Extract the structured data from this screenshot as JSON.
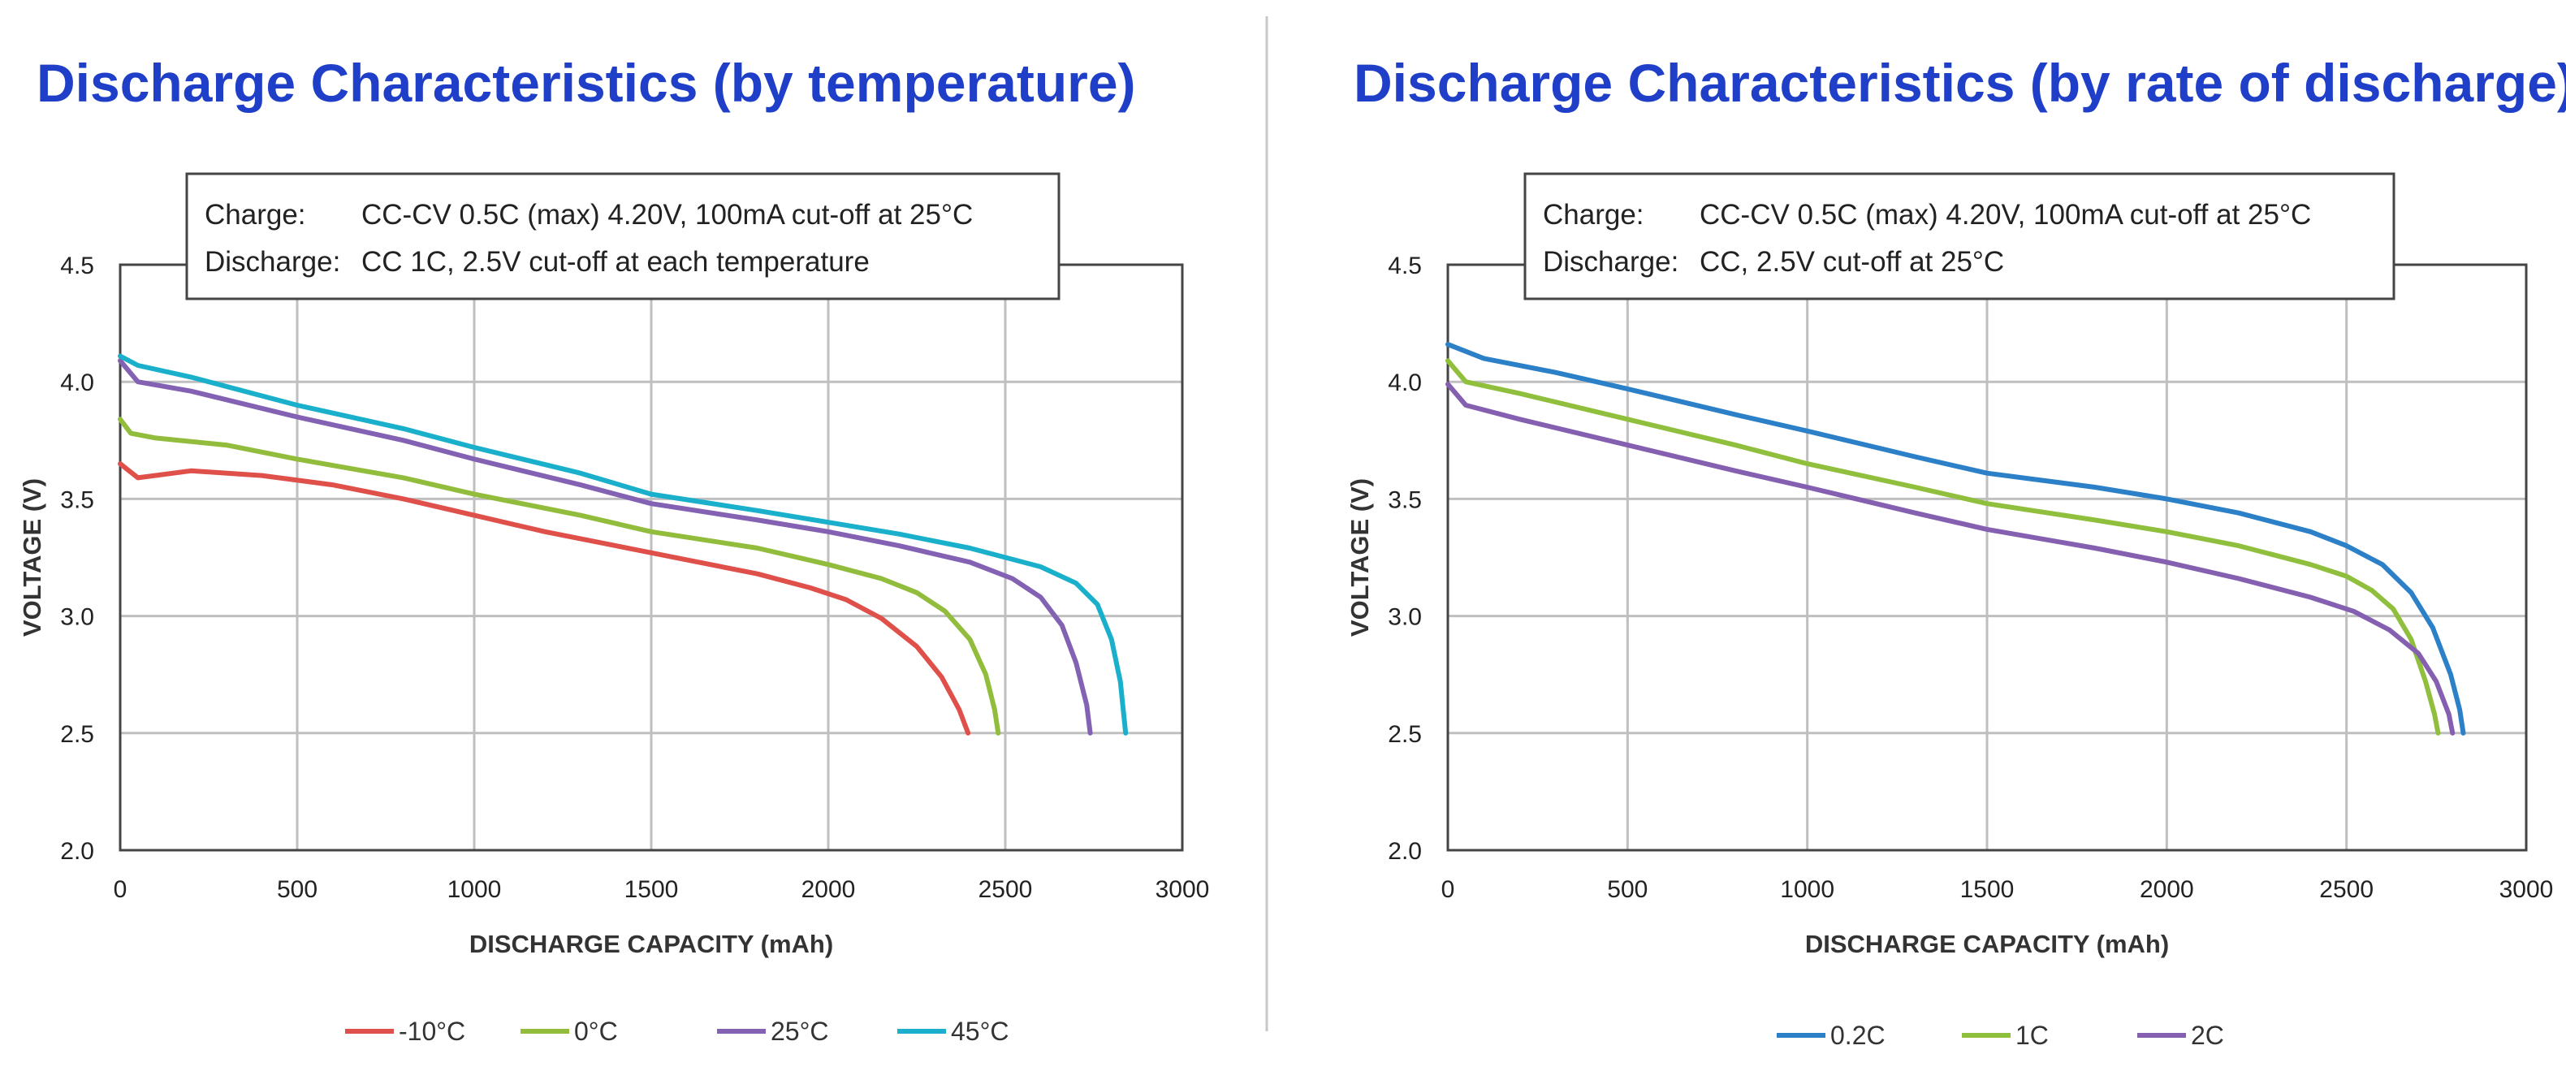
{
  "colors": {
    "title": "#1f3fc8",
    "grid": "#bfbfbf",
    "frame": "#444444",
    "divider": "#c8c8c8"
  },
  "chart_data": [
    {
      "type": "line",
      "title": "Discharge Characteristics (by temperature)",
      "xlabel": "DISCHARGE CAPACITY (mAh)",
      "ylabel": "VOLTAGE (V)",
      "xlim": [
        0,
        3000
      ],
      "ylim": [
        2.0,
        4.5
      ],
      "x_ticks": [
        0,
        500,
        1000,
        1500,
        2000,
        2500,
        3000
      ],
      "y_ticks": [
        2.0,
        2.5,
        3.0,
        3.5,
        4.0,
        4.5
      ],
      "x_tick_labels": [
        "0",
        "500",
        "1000",
        "1500",
        "2000",
        "2500",
        "3000"
      ],
      "y_tick_labels": [
        "2.0",
        "2.5",
        "3.0",
        "3.5",
        "4.0",
        "4.5"
      ],
      "grid": true,
      "legend_position": "bottom",
      "note": {
        "charge_label": "Charge:",
        "charge_text": "CC-CV 0.5C (max) 4.20V, 100mA cut-off at 25°C",
        "discharge_label": "Discharge:",
        "discharge_text": "CC 1C, 2.5V cut-off at each temperature"
      },
      "series": [
        {
          "name": "-10°C",
          "color": "#e0504a",
          "points": [
            [
              0,
              3.65
            ],
            [
              50,
              3.59
            ],
            [
              200,
              3.62
            ],
            [
              400,
              3.6
            ],
            [
              600,
              3.56
            ],
            [
              800,
              3.5
            ],
            [
              1000,
              3.43
            ],
            [
              1200,
              3.36
            ],
            [
              1400,
              3.3
            ],
            [
              1600,
              3.24
            ],
            [
              1800,
              3.18
            ],
            [
              1950,
              3.12
            ],
            [
              2050,
              3.07
            ],
            [
              2150,
              2.99
            ],
            [
              2250,
              2.87
            ],
            [
              2320,
              2.74
            ],
            [
              2370,
              2.6
            ],
            [
              2395,
              2.5
            ]
          ]
        },
        {
          "name": "0°C",
          "color": "#92bc3c",
          "points": [
            [
              0,
              3.84
            ],
            [
              30,
              3.78
            ],
            [
              100,
              3.76
            ],
            [
              300,
              3.73
            ],
            [
              500,
              3.67
            ],
            [
              800,
              3.59
            ],
            [
              1000,
              3.52
            ],
            [
              1300,
              3.43
            ],
            [
              1500,
              3.36
            ],
            [
              1800,
              3.29
            ],
            [
              2000,
              3.22
            ],
            [
              2150,
              3.16
            ],
            [
              2250,
              3.1
            ],
            [
              2330,
              3.02
            ],
            [
              2400,
              2.9
            ],
            [
              2445,
              2.75
            ],
            [
              2470,
              2.6
            ],
            [
              2480,
              2.5
            ]
          ]
        },
        {
          "name": "25°C",
          "color": "#8361b3",
          "points": [
            [
              0,
              4.09
            ],
            [
              50,
              4.0
            ],
            [
              200,
              3.96
            ],
            [
              500,
              3.85
            ],
            [
              800,
              3.75
            ],
            [
              1000,
              3.67
            ],
            [
              1300,
              3.56
            ],
            [
              1500,
              3.48
            ],
            [
              1800,
              3.41
            ],
            [
              2000,
              3.36
            ],
            [
              2200,
              3.3
            ],
            [
              2400,
              3.23
            ],
            [
              2520,
              3.16
            ],
            [
              2600,
              3.08
            ],
            [
              2660,
              2.96
            ],
            [
              2700,
              2.8
            ],
            [
              2730,
              2.62
            ],
            [
              2740,
              2.5
            ]
          ]
        },
        {
          "name": "45°C",
          "color": "#1ab0cc",
          "points": [
            [
              0,
              4.11
            ],
            [
              50,
              4.07
            ],
            [
              200,
              4.02
            ],
            [
              500,
              3.9
            ],
            [
              800,
              3.8
            ],
            [
              1000,
              3.72
            ],
            [
              1300,
              3.61
            ],
            [
              1500,
              3.52
            ],
            [
              1800,
              3.45
            ],
            [
              2000,
              3.4
            ],
            [
              2200,
              3.35
            ],
            [
              2400,
              3.29
            ],
            [
              2600,
              3.21
            ],
            [
              2700,
              3.14
            ],
            [
              2760,
              3.05
            ],
            [
              2800,
              2.9
            ],
            [
              2825,
              2.72
            ],
            [
              2840,
              2.5
            ]
          ]
        }
      ]
    },
    {
      "type": "line",
      "title": "Discharge Characteristics (by rate of discharge)",
      "xlabel": "DISCHARGE CAPACITY (mAh)",
      "ylabel": "VOLTAGE (V)",
      "xlim": [
        0,
        3000
      ],
      "ylim": [
        2.0,
        4.5
      ],
      "x_ticks": [
        0,
        500,
        1000,
        1500,
        2000,
        2500,
        3000
      ],
      "y_ticks": [
        2.0,
        2.5,
        3.0,
        3.5,
        4.0,
        4.5
      ],
      "x_tick_labels": [
        "0",
        "500",
        "1000",
        "1500",
        "2000",
        "2500",
        "3000"
      ],
      "y_tick_labels": [
        "2.0",
        "2.5",
        "3.0",
        "3.5",
        "4.0",
        "4.5"
      ],
      "grid": true,
      "legend_position": "bottom",
      "note": {
        "charge_label": "Charge:",
        "charge_text": "CC-CV 0.5C (max) 4.20V, 100mA cut-off at 25°C",
        "discharge_label": "Discharge:",
        "discharge_text": "CC, 2.5V cut-off at 25°C"
      },
      "series": [
        {
          "name": "0.2C",
          "color": "#2c80c8",
          "points": [
            [
              0,
              4.16
            ],
            [
              100,
              4.1
            ],
            [
              300,
              4.04
            ],
            [
              500,
              3.97
            ],
            [
              800,
              3.86
            ],
            [
              1000,
              3.79
            ],
            [
              1300,
              3.68
            ],
            [
              1500,
              3.61
            ],
            [
              1800,
              3.55
            ],
            [
              2000,
              3.5
            ],
            [
              2200,
              3.44
            ],
            [
              2400,
              3.36
            ],
            [
              2500,
              3.3
            ],
            [
              2600,
              3.22
            ],
            [
              2680,
              3.1
            ],
            [
              2740,
              2.95
            ],
            [
              2790,
              2.75
            ],
            [
              2815,
              2.6
            ],
            [
              2825,
              2.5
            ]
          ]
        },
        {
          "name": "1C",
          "color": "#8fbf3c",
          "points": [
            [
              0,
              4.09
            ],
            [
              50,
              4.0
            ],
            [
              200,
              3.95
            ],
            [
              500,
              3.84
            ],
            [
              800,
              3.73
            ],
            [
              1000,
              3.65
            ],
            [
              1300,
              3.55
            ],
            [
              1500,
              3.48
            ],
            [
              1800,
              3.41
            ],
            [
              2000,
              3.36
            ],
            [
              2200,
              3.3
            ],
            [
              2400,
              3.22
            ],
            [
              2500,
              3.17
            ],
            [
              2570,
              3.11
            ],
            [
              2630,
              3.03
            ],
            [
              2680,
              2.9
            ],
            [
              2720,
              2.72
            ],
            [
              2745,
              2.58
            ],
            [
              2755,
              2.5
            ]
          ]
        },
        {
          "name": "2C",
          "color": "#8560b0",
          "points": [
            [
              0,
              3.99
            ],
            [
              50,
              3.9
            ],
            [
              200,
              3.84
            ],
            [
              500,
              3.73
            ],
            [
              800,
              3.62
            ],
            [
              1000,
              3.55
            ],
            [
              1300,
              3.44
            ],
            [
              1500,
              3.37
            ],
            [
              1800,
              3.29
            ],
            [
              2000,
              3.23
            ],
            [
              2200,
              3.16
            ],
            [
              2400,
              3.08
            ],
            [
              2520,
              3.02
            ],
            [
              2620,
              2.94
            ],
            [
              2700,
              2.84
            ],
            [
              2750,
              2.72
            ],
            [
              2785,
              2.58
            ],
            [
              2795,
              2.5
            ]
          ]
        }
      ]
    }
  ]
}
